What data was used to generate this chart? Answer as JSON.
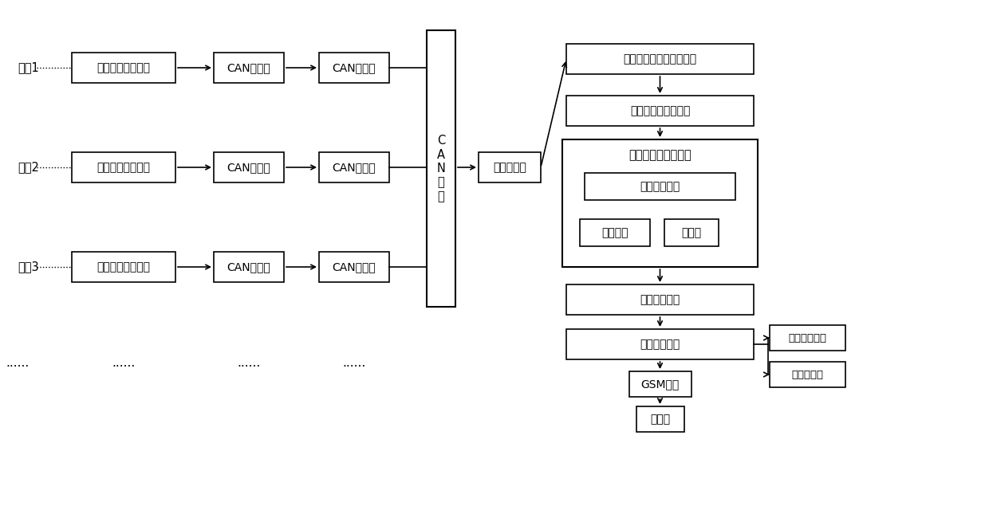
{
  "bg_color": "#ffffff",
  "box_edge": "#000000",
  "text_color": "#000000",
  "rows": [
    {
      "label": "目标1",
      "box1": "第一火灾探测单元",
      "box2": "CAN控制器",
      "box3": "CAN收发器"
    },
    {
      "label": "目标2",
      "box1": "第二火灾探测单元",
      "box2": "CAN控制器",
      "box3": "CAN收发器"
    },
    {
      "label": "目标3",
      "box1": "第三火灾探测单元",
      "box2": "CAN控制器",
      "box3": "CAN收发器"
    }
  ],
  "dots_row": "......",
  "can_bus_label": "C\nA\nN\n总\n线",
  "data_hub": "数据集中器",
  "ir_module": "红外采集图像预处理模块",
  "target_id": "被监控目标识别模块",
  "fire_detect_outer": "火灾检测、诊断单元",
  "temp_judge": "温度判断模块",
  "algo_module": "算法模块",
  "storage": "存储器",
  "result_out": "结果输出模块",
  "fire_control": "火灾监控中心",
  "gsm": "GSM模块",
  "mobile": "移动端",
  "broadcast": "消防广播设备",
  "fire_display": "火灾显示屏"
}
